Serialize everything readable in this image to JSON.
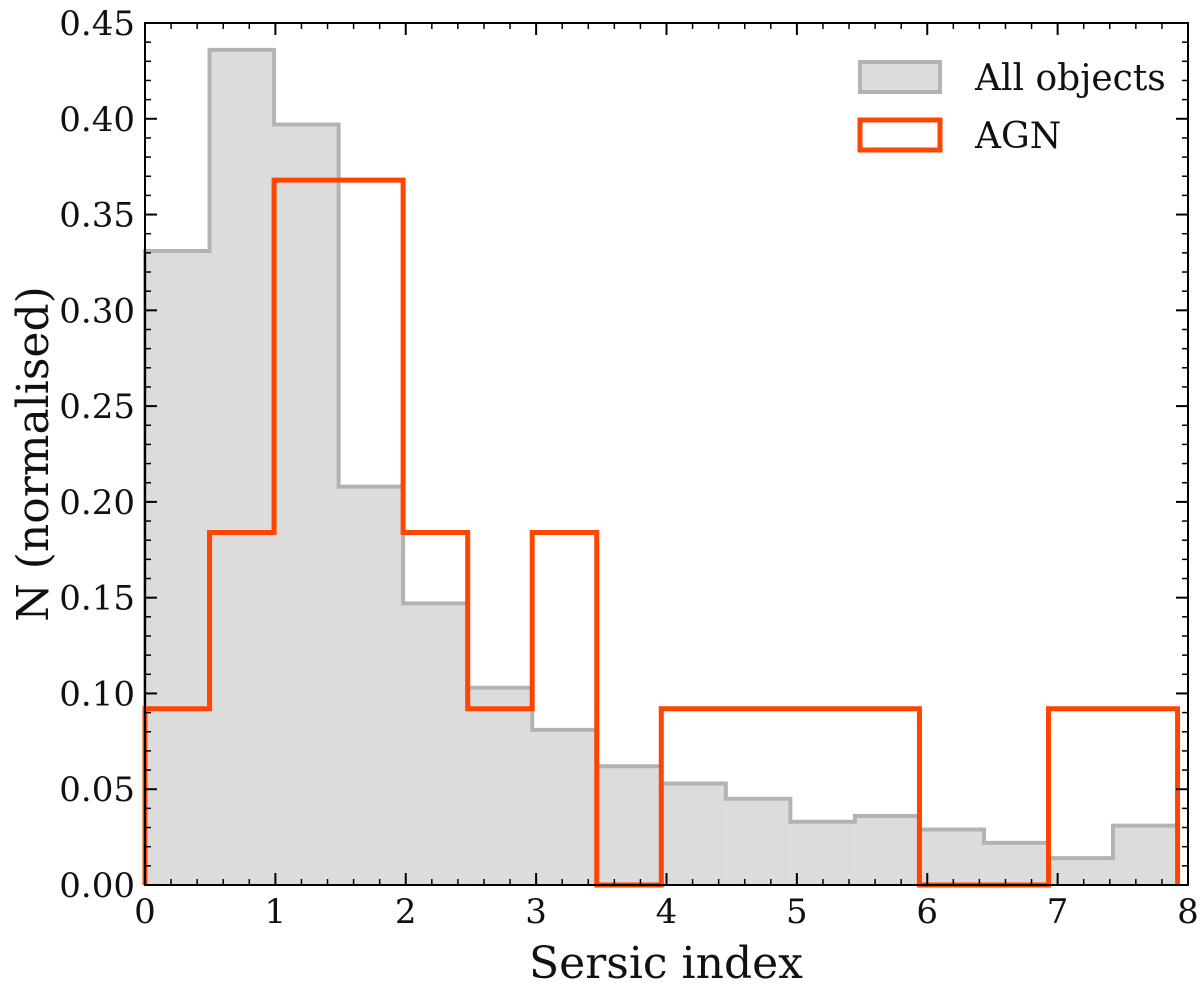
{
  "chart_data": {
    "type": "bar",
    "subtype": "step-histogram",
    "xlabel": "Sersic index",
    "ylabel": "N (normalised)",
    "xlim": [
      0,
      8
    ],
    "ylim": [
      0,
      0.45
    ],
    "xticks": [
      0,
      1,
      2,
      3,
      4,
      5,
      6,
      7,
      8
    ],
    "xtick_labels": [
      "0",
      "1",
      "2",
      "3",
      "4",
      "5",
      "6",
      "7",
      "8"
    ],
    "yticks": [
      0.0,
      0.05,
      0.1,
      0.15,
      0.2,
      0.25,
      0.3,
      0.35,
      0.4,
      0.45
    ],
    "ytick_labels": [
      "0.00",
      "0.05",
      "0.10",
      "0.15",
      "0.20",
      "0.25",
      "0.30",
      "0.35",
      "0.40",
      "0.45"
    ],
    "grid": false,
    "legend_position": "top-right",
    "series": [
      {
        "name": "All objects",
        "style": "filled",
        "fill": "#dcdcdc",
        "edge": "#b3b3b3",
        "bins": [
          {
            "x0": 0.0,
            "x1": 0.495,
            "value": 0.331
          },
          {
            "x0": 0.495,
            "x1": 0.99,
            "value": 0.436
          },
          {
            "x0": 0.99,
            "x1": 1.485,
            "value": 0.397
          },
          {
            "x0": 1.485,
            "x1": 1.98,
            "value": 0.208
          },
          {
            "x0": 1.98,
            "x1": 2.475,
            "value": 0.147
          },
          {
            "x0": 2.475,
            "x1": 2.97,
            "value": 0.103
          },
          {
            "x0": 2.97,
            "x1": 3.465,
            "value": 0.081
          },
          {
            "x0": 3.465,
            "x1": 3.96,
            "value": 0.062
          },
          {
            "x0": 3.96,
            "x1": 4.455,
            "value": 0.053
          },
          {
            "x0": 4.455,
            "x1": 4.95,
            "value": 0.045
          },
          {
            "x0": 4.95,
            "x1": 5.445,
            "value": 0.033
          },
          {
            "x0": 5.445,
            "x1": 5.94,
            "value": 0.036
          },
          {
            "x0": 5.94,
            "x1": 6.435,
            "value": 0.029
          },
          {
            "x0": 6.435,
            "x1": 6.93,
            "value": 0.022
          },
          {
            "x0": 6.93,
            "x1": 7.425,
            "value": 0.014
          },
          {
            "x0": 7.425,
            "x1": 7.92,
            "value": 0.031
          }
        ]
      },
      {
        "name": "AGN",
        "style": "step",
        "edge": "#ff4500",
        "bins": [
          {
            "x0": 0.0,
            "x1": 0.495,
            "value": 0.092
          },
          {
            "x0": 0.495,
            "x1": 0.99,
            "value": 0.184
          },
          {
            "x0": 0.99,
            "x1": 1.485,
            "value": 0.368
          },
          {
            "x0": 1.485,
            "x1": 1.98,
            "value": 0.368
          },
          {
            "x0": 1.98,
            "x1": 2.475,
            "value": 0.184
          },
          {
            "x0": 2.475,
            "x1": 2.97,
            "value": 0.092
          },
          {
            "x0": 2.97,
            "x1": 3.465,
            "value": 0.184
          },
          {
            "x0": 3.465,
            "x1": 3.96,
            "value": 0.0
          },
          {
            "x0": 3.96,
            "x1": 4.455,
            "value": 0.092
          },
          {
            "x0": 4.455,
            "x1": 4.95,
            "value": 0.092
          },
          {
            "x0": 4.95,
            "x1": 5.445,
            "value": 0.092
          },
          {
            "x0": 5.445,
            "x1": 5.94,
            "value": 0.092
          },
          {
            "x0": 5.94,
            "x1": 6.435,
            "value": 0.0
          },
          {
            "x0": 6.435,
            "x1": 6.93,
            "value": 0.0
          },
          {
            "x0": 6.93,
            "x1": 7.425,
            "value": 0.092
          },
          {
            "x0": 7.425,
            "x1": 7.92,
            "value": 0.092
          }
        ]
      }
    ]
  }
}
